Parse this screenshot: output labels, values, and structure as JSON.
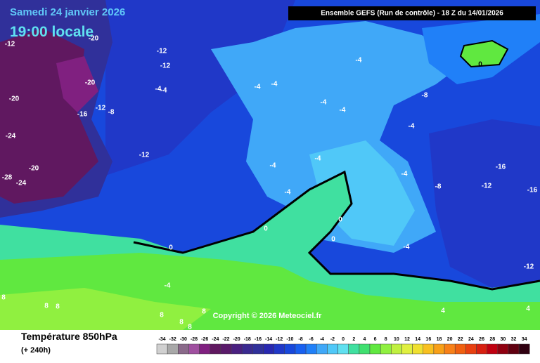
{
  "header": {
    "date": "Samedi 24 janvier 2026",
    "time": "19:00 locale",
    "run": "Ensemble GEFS  (Run de contrôle)  -  18 Z du 14/01/2026"
  },
  "footer": {
    "title": "Température 850hPa",
    "subtitle": "(+ 240h)",
    "copyright": "Copyright © 2026 Meteociel.fr"
  },
  "scale": {
    "values": [
      -34,
      -32,
      -30,
      -28,
      -26,
      -24,
      -22,
      -20,
      -18,
      -16,
      -14,
      -12,
      -10,
      -8,
      -6,
      -4,
      -2,
      0,
      2,
      4,
      6,
      8,
      10,
      12,
      14,
      16,
      18,
      20,
      22,
      24,
      26,
      28,
      30,
      32,
      34
    ],
    "colors": [
      "#d0d0d0",
      "#a8a8a8",
      "#8a6a8a",
      "#a050a0",
      "#802080",
      "#601860",
      "#5a1a6a",
      "#4a2080",
      "#3a2a90",
      "#30309a",
      "#2828b0",
      "#2038c8",
      "#1848dc",
      "#1860f0",
      "#2080f8",
      "#40a8f8",
      "#50c8f8",
      "#60e0f0",
      "#40e0a0",
      "#40e070",
      "#60e840",
      "#90f040",
      "#c0f040",
      "#e0f040",
      "#f0e030",
      "#f8c020",
      "#f8a018",
      "#f88018",
      "#f06010",
      "#e84010",
      "#d82010",
      "#c00010",
      "#900010",
      "#600010",
      "#300010"
    ]
  },
  "contour_labels": [
    -12,
    -20,
    -12,
    -12,
    -20,
    -4,
    -4,
    -20,
    -12,
    -16,
    -8,
    -4,
    -4,
    -4,
    -4,
    -4,
    -8,
    -4,
    -24,
    -12,
    -4,
    -4,
    -20,
    -16,
    -28,
    -24,
    -4,
    -4,
    -8,
    -12,
    -16,
    0,
    0,
    0,
    0,
    -4,
    -12,
    -4,
    8,
    8,
    8,
    8,
    8,
    8,
    8,
    0,
    4,
    4
  ]
}
